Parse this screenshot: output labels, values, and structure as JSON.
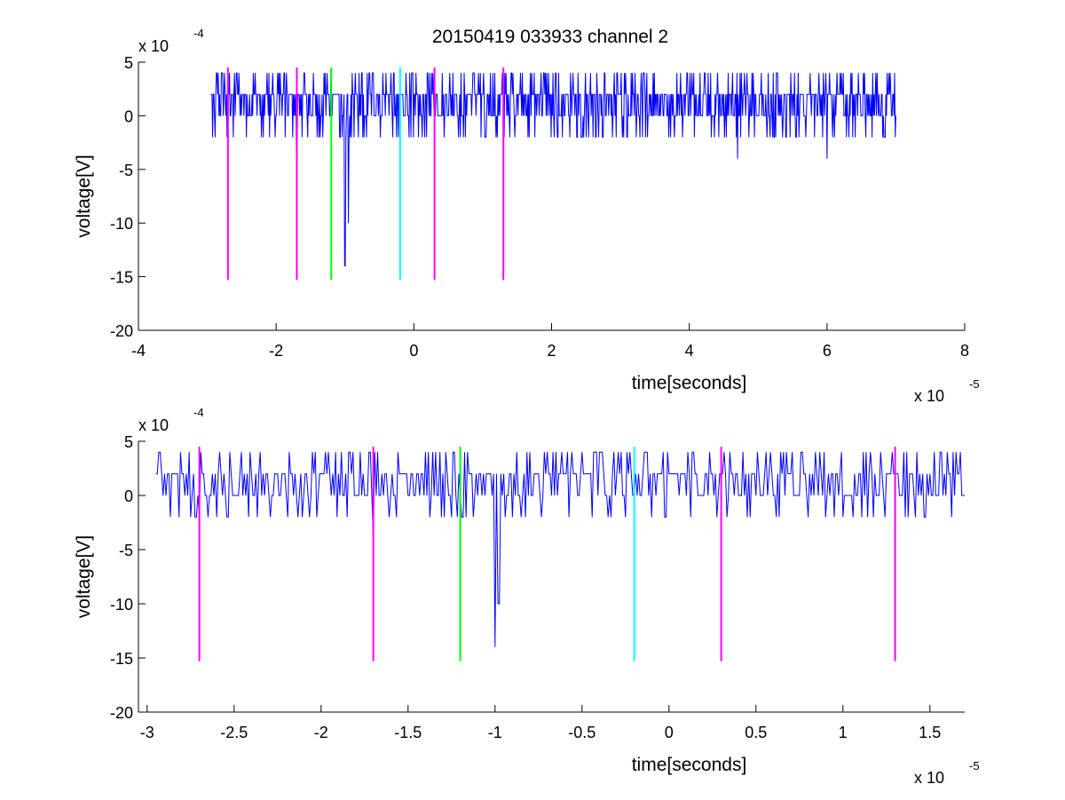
{
  "title": "20150419 033933 channel 2",
  "colors": {
    "signal": "#0000ff",
    "magenta": "#ff00ff",
    "green": "#00ff00",
    "cyan": "#00ffff"
  },
  "chart_data": [
    {
      "type": "line",
      "xlabel": "time[seconds]",
      "ylabel": "voltage[V]",
      "x_multiplier_label": "x 10",
      "x_multiplier_exp": "-5",
      "y_multiplier_label": "x 10",
      "y_multiplier_exp": "-4",
      "xlim": [
        -4,
        8
      ],
      "ylim": [
        -20,
        5
      ],
      "x_ticks": [
        -4,
        -2,
        0,
        2,
        4,
        6,
        8
      ],
      "x_tick_labels": [
        "-4",
        "-2",
        "0",
        "2",
        "4",
        "6",
        "8"
      ],
      "y_ticks": [
        5,
        0,
        -5,
        -10,
        -15,
        -20
      ],
      "y_tick_labels": [
        "5",
        "0",
        "-5",
        "-10",
        "-15",
        "-20"
      ],
      "grid": false,
      "signal": {
        "x_start": -2.95,
        "x_end": 7.0,
        "baseline": [
          0,
          2
        ],
        "noise_levels": [
          -2,
          0,
          2,
          4
        ],
        "dips": [
          [
            -1.7,
            -4
          ],
          [
            -1.0,
            -14
          ],
          [
            -0.95,
            -10
          ],
          [
            4.7,
            -4
          ],
          [
            6.0,
            -4
          ]
        ]
      },
      "markers": [
        {
          "x": -2.7,
          "y1": -15.3,
          "y2": 4.5,
          "color": "magenta"
        },
        {
          "x": -1.7,
          "y1": -15.3,
          "y2": 4.5,
          "color": "magenta"
        },
        {
          "x": -1.2,
          "y1": -15.3,
          "y2": 4.5,
          "color": "green"
        },
        {
          "x": -0.2,
          "y1": -15.3,
          "y2": 4.5,
          "color": "cyan"
        },
        {
          "x": 0.3,
          "y1": -15.3,
          "y2": 4.5,
          "color": "magenta"
        },
        {
          "x": 1.3,
          "y1": -15.3,
          "y2": 4.5,
          "color": "magenta"
        }
      ]
    },
    {
      "type": "line",
      "xlabel": "time[seconds]",
      "ylabel": "voltage[V]",
      "x_multiplier_label": "x 10",
      "x_multiplier_exp": "-5",
      "y_multiplier_label": "x 10",
      "y_multiplier_exp": "-4",
      "xlim": [
        -3.05,
        1.7
      ],
      "ylim": [
        -20,
        5
      ],
      "x_ticks": [
        -3,
        -2.5,
        -2,
        -1.5,
        -1,
        -0.5,
        0,
        0.5,
        1,
        1.5
      ],
      "x_tick_labels": [
        "-3",
        "-2.5",
        "-2",
        "-1.5",
        "-1",
        "-0.5",
        "0",
        "0.5",
        "1",
        "1.5"
      ],
      "y_ticks": [
        5,
        0,
        -5,
        -10,
        -15,
        -20
      ],
      "y_tick_labels": [
        "5",
        "0",
        "-5",
        "-10",
        "-15",
        "-20"
      ],
      "grid": false,
      "signal": {
        "x_start": -2.95,
        "x_end": 1.7,
        "baseline": [
          0,
          2
        ],
        "noise_levels": [
          -2,
          0,
          2,
          4
        ],
        "dips": [
          [
            -1.7,
            -4
          ],
          [
            -1.0,
            -14
          ],
          [
            -0.98,
            -10
          ]
        ]
      },
      "markers": [
        {
          "x": -2.7,
          "y1": -15.3,
          "y2": 4.5,
          "color": "magenta"
        },
        {
          "x": -1.7,
          "y1": -15.3,
          "y2": 4.5,
          "color": "magenta"
        },
        {
          "x": -1.2,
          "y1": -15.3,
          "y2": 4.5,
          "color": "green"
        },
        {
          "x": -0.2,
          "y1": -15.3,
          "y2": 4.5,
          "color": "cyan"
        },
        {
          "x": 0.3,
          "y1": -15.3,
          "y2": 4.5,
          "color": "magenta"
        },
        {
          "x": 1.3,
          "y1": -15.3,
          "y2": 4.5,
          "color": "magenta"
        }
      ]
    }
  ]
}
